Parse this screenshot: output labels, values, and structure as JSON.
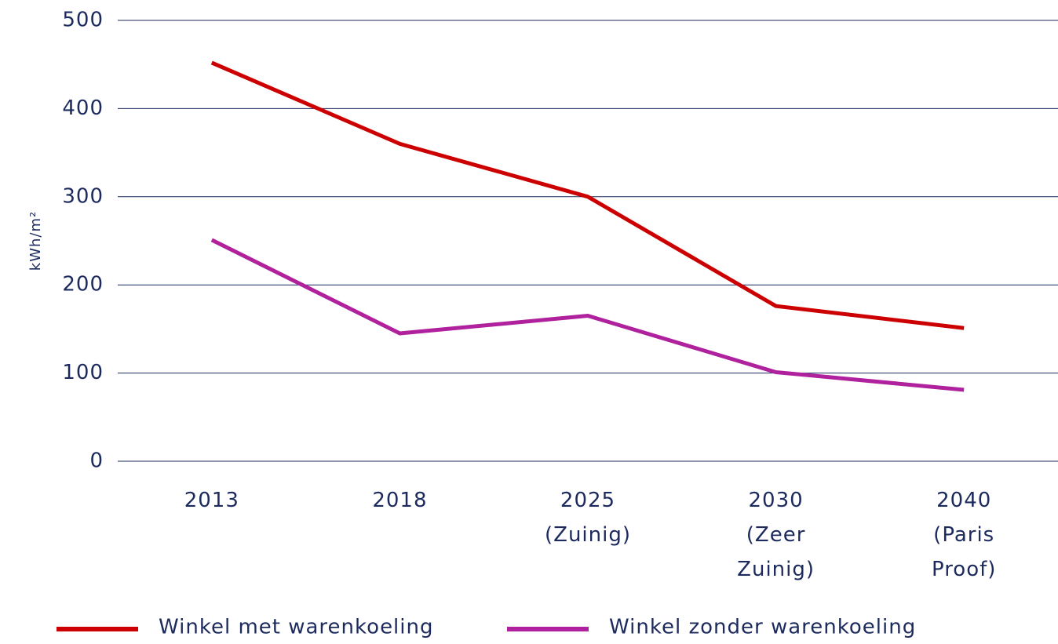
{
  "chart_data": {
    "type": "line",
    "y_label": "kWh/m²",
    "categories": [
      "2013",
      "2018",
      "2025 (Zuinig)",
      "2030 (Zeer Zuinig)",
      "2040 (Paris Proof)"
    ],
    "series": [
      {
        "name": "Winkel met warenkoeling",
        "color": "#cc0000",
        "values": [
          452,
          360,
          300,
          176,
          151
        ]
      },
      {
        "name": "Winkel zonder warenkoeling",
        "color": "#b0219e",
        "values": [
          251,
          145,
          165,
          101,
          81
        ]
      }
    ],
    "ylim": [
      0,
      500
    ],
    "yticks": [
      0,
      100,
      200,
      300,
      400,
      500
    ],
    "grid": true,
    "legend": "bottom"
  }
}
